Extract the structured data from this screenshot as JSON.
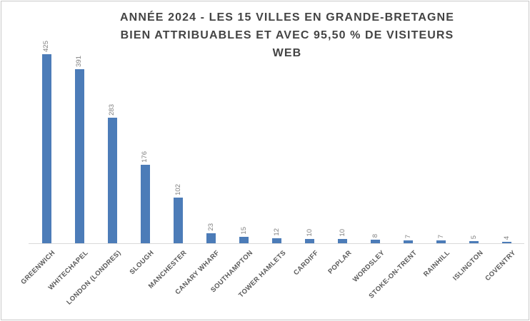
{
  "chart_data": {
    "type": "bar",
    "title": "ANNÉE 2024 - LES 15 VILLES EN GRANDE-BRETAGNE BIEN ATTRIBUABLES ET AVEC 95,50 % DE VISITEURS WEB",
    "title_lines": [
      "ANNÉE 2024 - LES 15 VILLES EN GRANDE-BRETAGNE",
      "BIEN ATTRIBUABLES ET AVEC 95,50 % DE VISITEURS",
      "WEB"
    ],
    "categories": [
      "GREENWICH",
      "WHITECHAPEL",
      "LONDON (LONDRES)",
      "SLOUGH",
      "MANCHESTER",
      "CANARY WHARF",
      "SOUTHAMPTON",
      "TOWER HAMLETS",
      "CARDIFF",
      "POPLAR",
      "WORDSLEY",
      "STOKE-ON-TRENT",
      "RAINHILL",
      "ISLINGTON",
      "COVENTRY"
    ],
    "values": [
      425,
      391,
      283,
      176,
      102,
      23,
      15,
      12,
      10,
      10,
      8,
      7,
      7,
      5,
      4
    ],
    "value_labels_rotation_deg": 90,
    "category_labels_rotation_deg": 45,
    "ylim": [
      0,
      425
    ],
    "grid": false,
    "legend": false,
    "colors": {
      "bar": "#4C7CB8",
      "title": "#444444",
      "value_label": "#808080",
      "category_label": "#595959",
      "axis_line": "#D9D9D9",
      "chart_border": "#C9C9C9",
      "background": "#FFFFFF"
    }
  }
}
